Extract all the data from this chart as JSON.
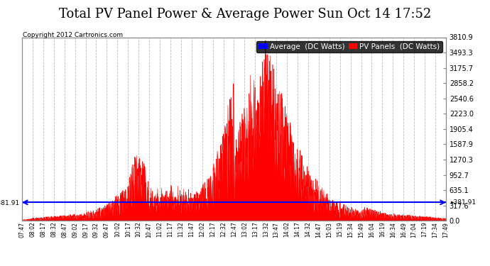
{
  "title": "Total PV Panel Power & Average Power Sun Oct 14 17:52",
  "copyright": "Copyright 2012 Cartronics.com",
  "ylabel_right_values": [
    0.0,
    317.6,
    635.1,
    952.7,
    1270.3,
    1587.9,
    1905.4,
    2223.0,
    2540.6,
    2858.2,
    3175.7,
    3493.3,
    3810.9
  ],
  "average_line_value": 381.91,
  "average_label": "Average  (DC Watts)",
  "pv_label": "PV Panels  (DC Watts)",
  "average_color": "#0000ff",
  "pv_color": "#ff0000",
  "background_color": "#ffffff",
  "plot_bg_color": "#ffffff",
  "grid_color": "#bbbbbb",
  "title_fontsize": 13,
  "legend_fontsize": 7.5,
  "ymax": 3810.9,
  "ymin": 0.0,
  "x_tick_labels": [
    "07:47",
    "08:02",
    "08:17",
    "08:32",
    "08:47",
    "09:02",
    "09:17",
    "09:32",
    "09:47",
    "10:02",
    "10:17",
    "10:32",
    "10:47",
    "11:02",
    "11:17",
    "11:32",
    "11:47",
    "12:02",
    "12:17",
    "12:32",
    "12:47",
    "13:02",
    "13:17",
    "13:32",
    "13:47",
    "14:02",
    "14:17",
    "14:32",
    "14:47",
    "15:03",
    "15:19",
    "15:34",
    "15:49",
    "16:04",
    "16:19",
    "16:34",
    "16:49",
    "17:04",
    "17:19",
    "17:34",
    "17:49"
  ]
}
